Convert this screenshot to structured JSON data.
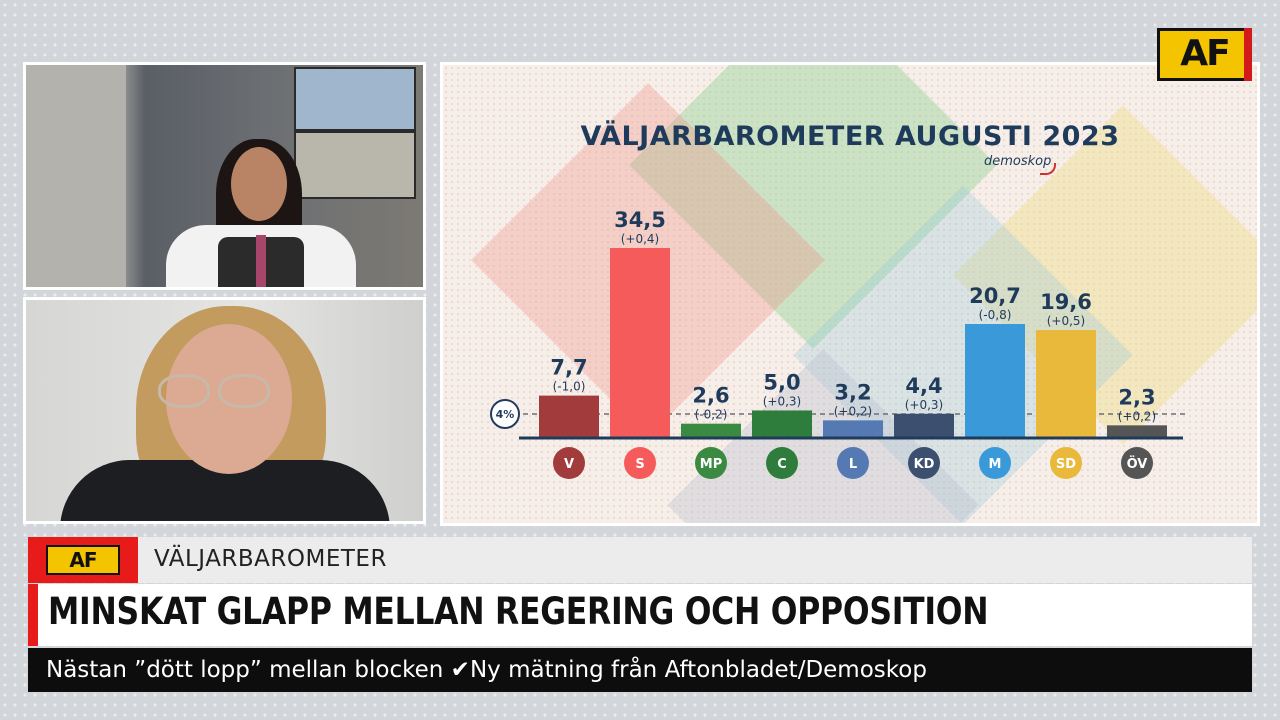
{
  "brand": {
    "logo_text": "AF",
    "accent": "#e81b1b",
    "logo_yellow": "#f4c400"
  },
  "video_feeds": [
    {
      "name": "studio-anchor",
      "description_icon": "anchor-video-icon"
    },
    {
      "name": "remote-guest",
      "description_icon": "guest-video-icon"
    }
  ],
  "chart_data": {
    "type": "bar",
    "title": "VÄLJARBAROMETER AUGUSTI 2023",
    "source": "demoskop",
    "categories": [
      "V",
      "S",
      "MP",
      "C",
      "L",
      "KD",
      "M",
      "SD",
      "ÖV"
    ],
    "values": [
      7.7,
      34.5,
      2.6,
      5.0,
      3.2,
      4.4,
      20.7,
      19.6,
      2.3
    ],
    "value_labels": [
      "7,7",
      "34,5",
      "2,6",
      "5,0",
      "3,2",
      "4,4",
      "20,7",
      "19,6",
      "2,3"
    ],
    "change_labels": [
      "(-1,0)",
      "(+0,4)",
      "(-0,2)",
      "(+0,3)",
      "(+0,2)",
      "(+0,3)",
      "(-0,8)",
      "(+0,5)",
      "(+0,2)"
    ],
    "colors": [
      "#a23c3c",
      "#f55b5b",
      "#3a8a42",
      "#2f7d3c",
      "#5479b3",
      "#3c4f6e",
      "#3a9ad9",
      "#e8b93a",
      "#555555"
    ],
    "threshold": {
      "value": 4,
      "label": "4%"
    },
    "ylim": [
      0,
      36
    ],
    "grid": false,
    "legend": "none"
  },
  "lower_third": {
    "kicker": "VÄLJARBAROMETER",
    "headline": "MINSKAT GLAPP MELLAN REGERING OCH OPPOSITION",
    "ticker": "Nästan ”dött lopp” mellan blocken ✔Ny mätning från Aftonbladet/Demoskop"
  }
}
